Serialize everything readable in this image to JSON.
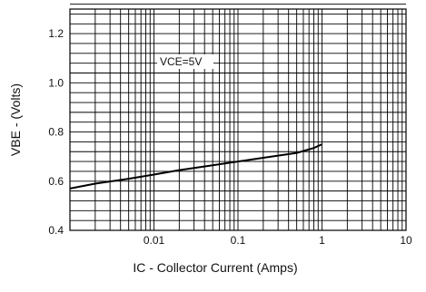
{
  "chart_data": {
    "type": "line",
    "xlabel": "IC - Collector Current (Amps)",
    "ylabel": "VBE - (Volts)",
    "x_scale": "log",
    "xlim": [
      0.001,
      10
    ],
    "ylim": [
      0.4,
      1.3
    ],
    "x_ticks": [
      0.01,
      0.1,
      1,
      10
    ],
    "x_tick_labels": [
      "0.01",
      "0.1",
      "1",
      "10"
    ],
    "y_ticks": [
      0.4,
      0.6,
      0.8,
      1.0,
      1.2
    ],
    "y_tick_labels": [
      "0.4",
      "0.6",
      "0.8",
      "1.0",
      "1.2"
    ],
    "grid": true,
    "annotation": "VCE=5V",
    "series": [
      {
        "x": [
          0.001,
          0.002,
          0.005,
          0.01,
          0.02,
          0.05,
          0.1,
          0.2,
          0.5,
          0.8,
          1.0
        ],
        "y": [
          0.57,
          0.59,
          0.61,
          0.627,
          0.645,
          0.665,
          0.68,
          0.695,
          0.715,
          0.735,
          0.75
        ]
      }
    ]
  }
}
